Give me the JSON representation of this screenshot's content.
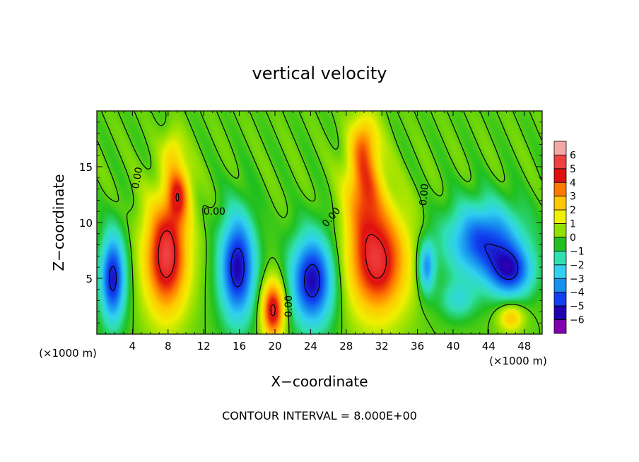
{
  "chart_data": {
    "type": "heatmap",
    "title": "vertical velocity",
    "xlabel": "X−coordinate",
    "ylabel": "Z−coordinate",
    "x_unit_left": "(×1000 m)",
    "x_unit_right": "(×1000 m)",
    "footer": "CONTOUR INTERVAL = 8.000E+00",
    "xlim": [
      0,
      50
    ],
    "ylim": [
      0,
      20
    ],
    "x_ticks": [
      4,
      8,
      12,
      16,
      20,
      24,
      28,
      32,
      36,
      40,
      44,
      48
    ],
    "x_tick_labels": [
      "4",
      "8",
      "12",
      "16",
      "20",
      "24",
      "28",
      "32",
      "36",
      "40",
      "44",
      "48"
    ],
    "y_ticks": [
      5,
      10,
      15
    ],
    "y_tick_labels": [
      "5",
      "10",
      "15"
    ],
    "contour_labels": [
      {
        "text": "0.00",
        "x": 4.5,
        "y": 14.0,
        "rotate": -80
      },
      {
        "text": "0.00",
        "x": 13.2,
        "y": 11.0,
        "rotate": 0
      },
      {
        "text": "0.00",
        "x": 26.3,
        "y": 10.5,
        "rotate": -50
      },
      {
        "text": "0.00",
        "x": 21.5,
        "y": 2.5,
        "rotate": -90
      },
      {
        "text": "0.00",
        "x": 36.7,
        "y": 12.5,
        "rotate": -85
      }
    ],
    "colorbar": {
      "levels": [
        "6",
        "5",
        "4",
        "3",
        "2",
        "1",
        "0",
        "−1",
        "−2",
        "−3",
        "−4",
        "−5",
        "−6"
      ],
      "colors": [
        "#f5a8a8",
        "#f04040",
        "#e01010",
        "#ff7a00",
        "#ffc800",
        "#f0f000",
        "#90e000",
        "#20c020",
        "#30e0b0",
        "#30d0f0",
        "#1890f0",
        "#1040f0",
        "#2000b0",
        "#8000b0"
      ]
    },
    "features": [
      {
        "kind": "updraft",
        "cx": 7.8,
        "cy": 7.0,
        "rx": 2.6,
        "ry": 5.5,
        "amp": 5.5
      },
      {
        "kind": "updraft",
        "cx": 9.2,
        "cy": 12.8,
        "rx": 1.4,
        "ry": 2.8,
        "amp": 3.2
      },
      {
        "kind": "updraft",
        "cx": 8.5,
        "cy": 16.5,
        "rx": 1.2,
        "ry": 2.0,
        "amp": 1.6
      },
      {
        "kind": "updraft",
        "cx": 31.5,
        "cy": 6.5,
        "rx": 3.6,
        "ry": 5.2,
        "amp": 5.2
      },
      {
        "kind": "updraft",
        "cx": 30.0,
        "cy": 13.5,
        "rx": 2.2,
        "ry": 4.5,
        "amp": 3.4
      },
      {
        "kind": "updraft",
        "cx": 30.0,
        "cy": 17.5,
        "rx": 1.5,
        "ry": 2.5,
        "amp": 2.0
      },
      {
        "kind": "updraft",
        "cx": 19.8,
        "cy": 2.2,
        "rx": 1.4,
        "ry": 2.8,
        "amp": 5.2
      },
      {
        "kind": "updraft",
        "cx": 46.5,
        "cy": 1.5,
        "rx": 1.5,
        "ry": 1.3,
        "amp": 2.6
      },
      {
        "kind": "downdraft",
        "cx": 1.8,
        "cy": 5.0,
        "rx": 1.5,
        "ry": 4.2,
        "amp": -5.2
      },
      {
        "kind": "downdraft",
        "cx": 15.8,
        "cy": 6.0,
        "rx": 2.1,
        "ry": 5.0,
        "amp": -5.5
      },
      {
        "kind": "downdraft",
        "cx": 24.2,
        "cy": 4.8,
        "rx": 2.6,
        "ry": 4.3,
        "amp": -5.5
      },
      {
        "kind": "downdraft",
        "cx": 37.0,
        "cy": 6.0,
        "rx": 1.0,
        "ry": 2.5,
        "amp": -3.5
      },
      {
        "kind": "downdraft",
        "cx": 43.5,
        "cy": 8.3,
        "rx": 4.5,
        "ry": 3.6,
        "amp": -4.5
      },
      {
        "kind": "downdraft",
        "cx": 46.5,
        "cy": 5.5,
        "rx": 2.6,
        "ry": 2.4,
        "amp": -4.0
      },
      {
        "kind": "downdraft",
        "cx": 40.5,
        "cy": 3.0,
        "rx": 2.2,
        "ry": 1.8,
        "amp": -1.8
      }
    ]
  }
}
